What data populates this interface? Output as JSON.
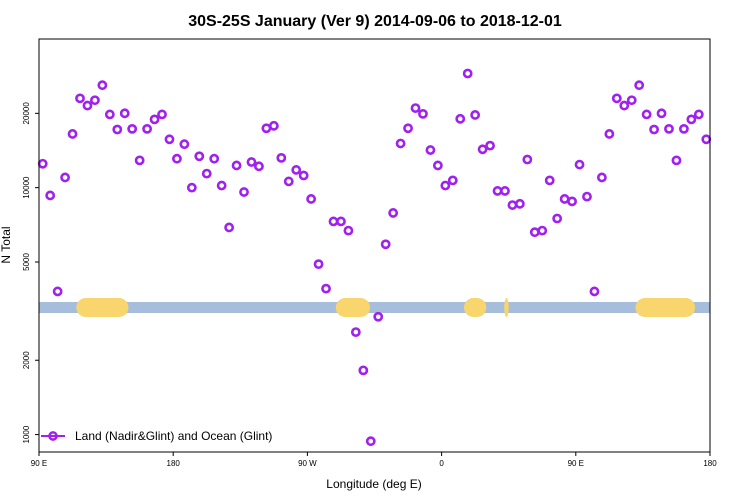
{
  "chart_data": {
    "type": "scatter",
    "title": "30S-25S January (Ver 9)   2014-09-06 to 2018-12-01",
    "xlabel": "Longitude (deg E)",
    "ylabel": "N Total",
    "xlim": [
      90,
      540
    ],
    "ylim": [
      850,
      40000
    ],
    "y_scale": "log",
    "x_ticks": [
      {
        "value": 90,
        "label": "90 E"
      },
      {
        "value": 180,
        "label": "180"
      },
      {
        "value": 270,
        "label": "90 W"
      },
      {
        "value": 360,
        "label": "0"
      },
      {
        "value": 450,
        "label": "90 E"
      },
      {
        "value": 540,
        "label": "180"
      }
    ],
    "y_ticks": [
      {
        "value": 1000,
        "label": "1000"
      },
      {
        "value": 2000,
        "label": "2000"
      },
      {
        "value": 5000,
        "label": "5000"
      },
      {
        "value": 10000,
        "label": "10000"
      },
      {
        "value": 20000,
        "label": "20000"
      }
    ],
    "grid": false,
    "legend": {
      "position": "bottom-left",
      "entries": [
        "Land (Nadir&Glint) and Ocean (Glint)"
      ]
    },
    "colors": {
      "series": "#a020f0",
      "band_ocean": "#a6bddb",
      "band_land": "#f8d66d"
    },
    "land_band": {
      "segments": [
        {
          "start": 115,
          "end": 150,
          "kind": "land"
        },
        {
          "start": 289,
          "end": 312,
          "kind": "land"
        },
        {
          "start": 375,
          "end": 390,
          "kind": "land"
        },
        {
          "start": 402,
          "end": 405,
          "kind": "land"
        },
        {
          "start": 490,
          "end": 530,
          "kind": "land"
        }
      ]
    },
    "series": [
      {
        "name": "Land (Nadir&Glint) and Ocean (Glint)",
        "x": [
          92.5,
          97.5,
          102.5,
          107.5,
          112.5,
          117.5,
          122.5,
          127.5,
          132.5,
          137.5,
          142.5,
          147.5,
          152.5,
          157.5,
          162.5,
          167.5,
          172.5,
          177.5,
          182.5,
          187.5,
          192.5,
          197.5,
          202.5,
          207.5,
          212.5,
          217.5,
          222.5,
          227.5,
          232.5,
          237.5,
          242.5,
          247.5,
          252.5,
          257.5,
          262.5,
          267.5,
          272.5,
          277.5,
          282.5,
          287.5,
          292.5,
          297.5,
          302.5,
          307.5,
          312.5,
          317.5,
          322.5,
          327.5,
          332.5,
          337.5,
          342.5,
          347.5,
          352.5,
          357.5,
          362.5,
          367.5,
          372.5,
          377.5,
          382.5,
          387.5,
          392.5,
          397.5,
          402.5,
          407.5,
          412.5,
          417.5,
          422.5,
          427.5,
          432.5,
          437.5,
          442.5,
          447.5,
          452.5,
          457.5,
          462.5,
          467.5,
          472.5,
          477.5,
          482.5,
          487.5,
          492.5,
          497.5,
          502.5,
          507.5,
          512.5,
          517.5,
          522.5,
          527.5,
          532.5,
          537.5
        ],
        "y": [
          12500,
          9300,
          3800,
          11000,
          16500,
          23000,
          21500,
          22600,
          26000,
          19800,
          17200,
          20000,
          17300,
          12900,
          17300,
          18900,
          19800,
          15700,
          13100,
          15000,
          10000,
          13400,
          11400,
          13100,
          10200,
          6900,
          12300,
          9600,
          12700,
          12200,
          17400,
          17800,
          13200,
          10600,
          11800,
          11200,
          9000,
          4900,
          3900,
          7300,
          7300,
          6700,
          2600,
          1820,
          940,
          3000,
          5900,
          7900,
          15100,
          17400,
          21000,
          19900,
          14200,
          12300,
          10200,
          10700,
          19000,
          29000,
          19700,
          14300,
          14800,
          9700,
          9700,
          8500,
          8600,
          13000,
          6600,
          6700,
          10700,
          7500,
          9000,
          8800,
          12400,
          9200,
          3800,
          11000,
          16500,
          23000,
          21500,
          22600,
          26000,
          19800,
          17200,
          20000,
          17300,
          12900,
          17300,
          18900,
          19800,
          15700
        ]
      }
    ]
  }
}
